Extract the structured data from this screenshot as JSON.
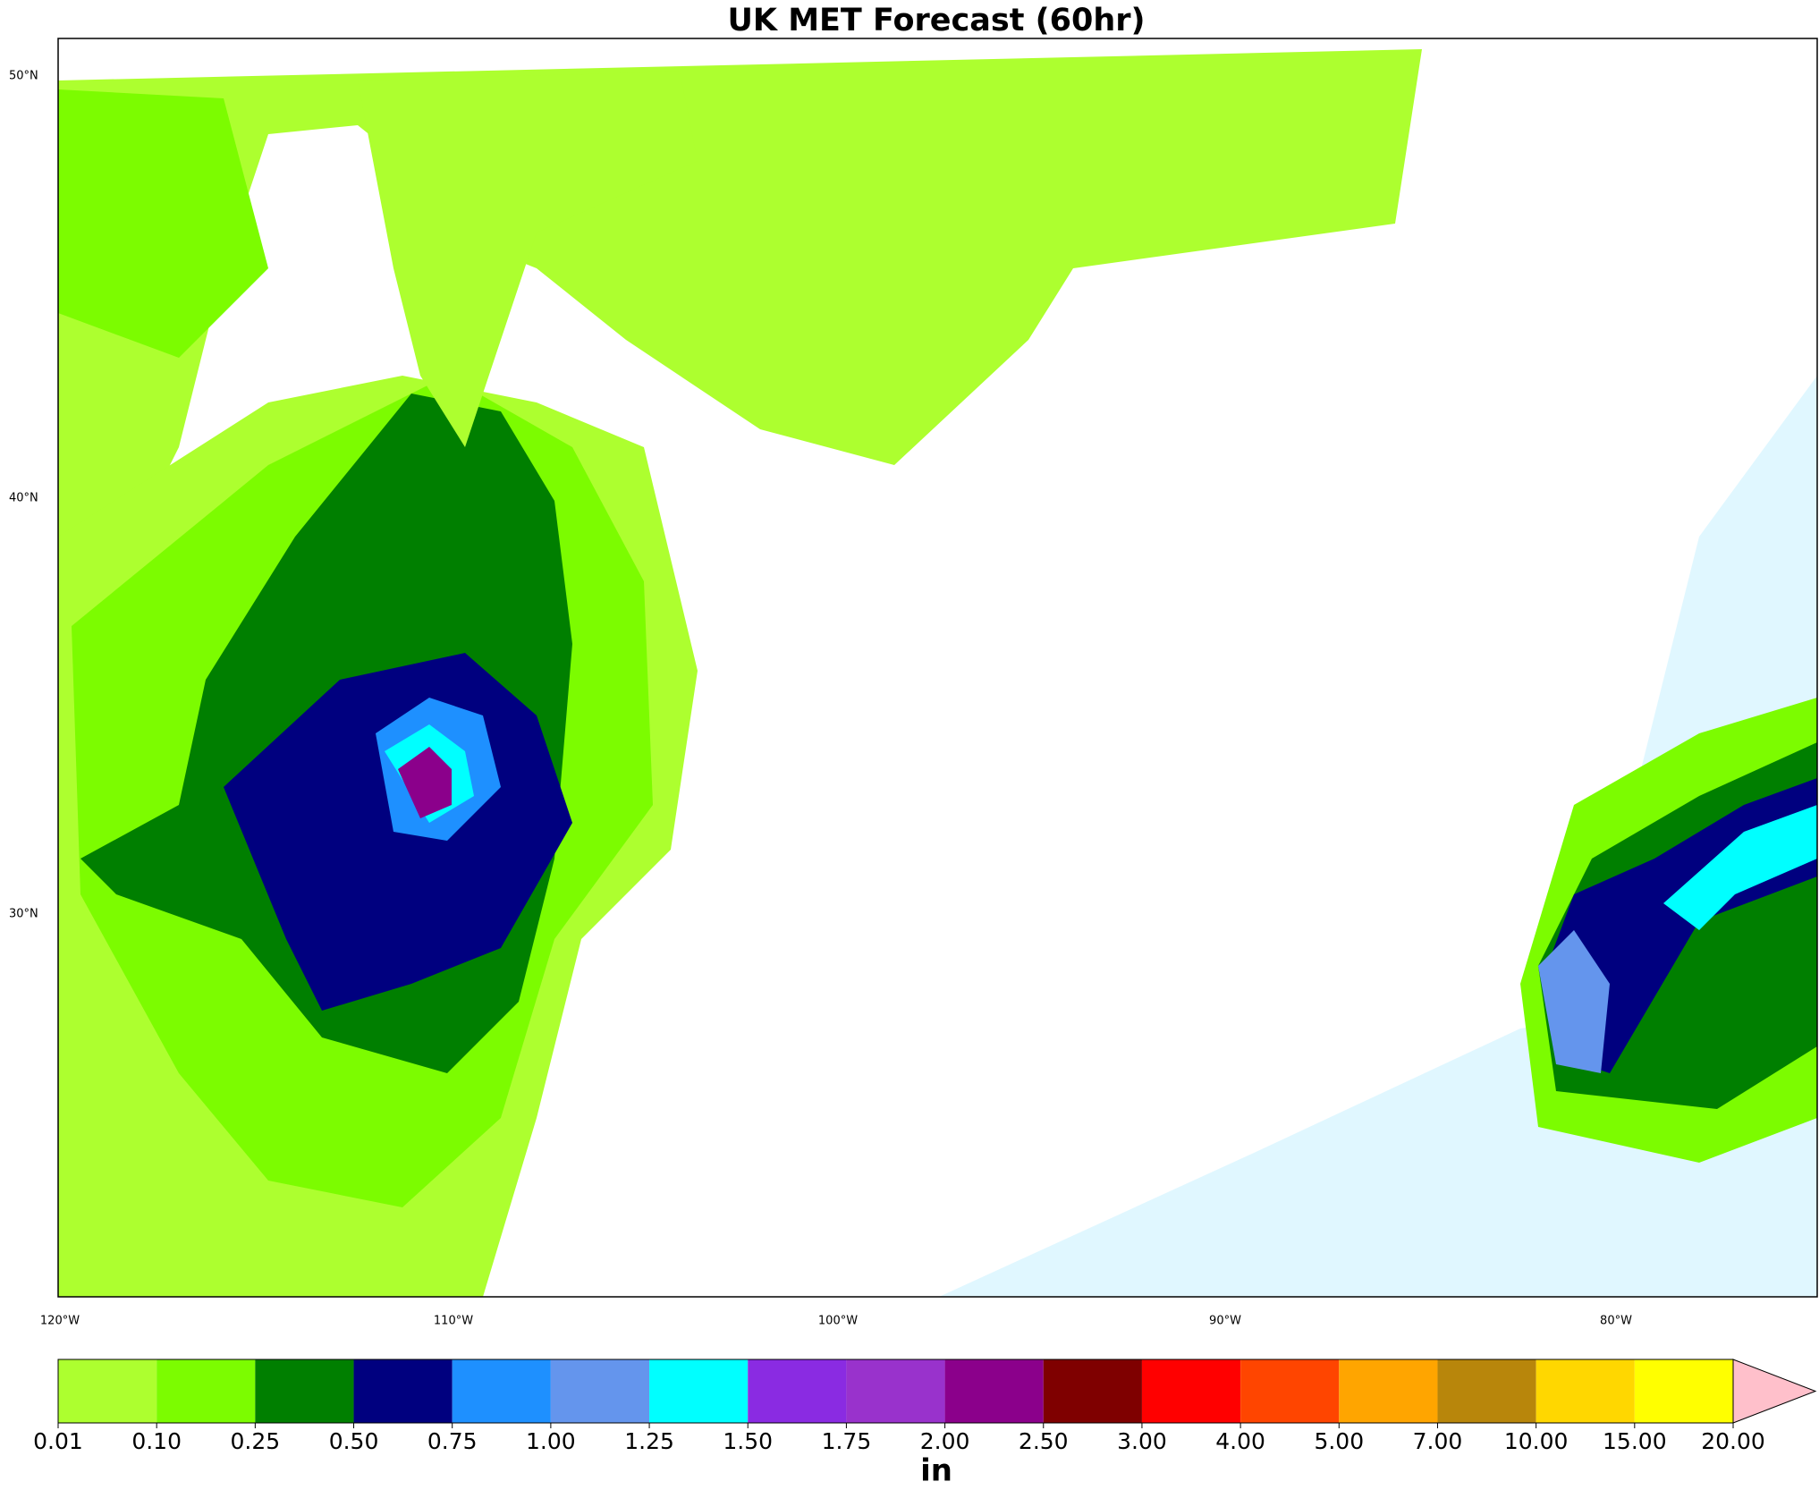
{
  "title": "UK MET Forecast (60hr)",
  "map": {
    "lat_labels": [
      "50°N",
      "40°N",
      "30°N"
    ],
    "lon_labels": [
      "120°W",
      "110°W",
      "100°W",
      "90°W",
      "80°W"
    ]
  },
  "colorbar": {
    "bounds": [
      0.01,
      {
        "value": 0.1,
        "label": "0.10"
      },
      0.25,
      {
        "value": 0.5,
        "label": "0.50"
      },
      0.75,
      {
        "value": 1,
        "label": "1.00"
      },
      1.25,
      {
        "value": 1.5,
        "label": "1.50"
      },
      1.75,
      {
        "value": 2,
        "label": "2.00"
      },
      {
        "value": 2.5,
        "label": "2.50"
      },
      {
        "value": 3,
        "label": "3.00"
      },
      {
        "value": 4,
        "label": "4.00"
      },
      {
        "value": 5,
        "label": "5.00"
      },
      {
        "value": 7,
        "label": "7.00"
      },
      {
        "value": 10,
        "label": "10.00"
      },
      {
        "value": 15,
        "label": "15.00"
      },
      {
        "value": 20,
        "label": "20.00"
      }
    ],
    "colors": [
      "#adff2f",
      "#7cfc00",
      "#007f00",
      "#00007f",
      "#1e90ff",
      "#6495ed",
      "#00ffff",
      "#8a2be2",
      "#9932cc",
      "#8b008b",
      "#7f0000",
      "#ff0000",
      "#ff4500",
      "#ffa500",
      "#b8860b",
      "#ffd700",
      "#ffff00"
    ],
    "extend_color": "#ffc0cb",
    "unit": "in"
  }
}
